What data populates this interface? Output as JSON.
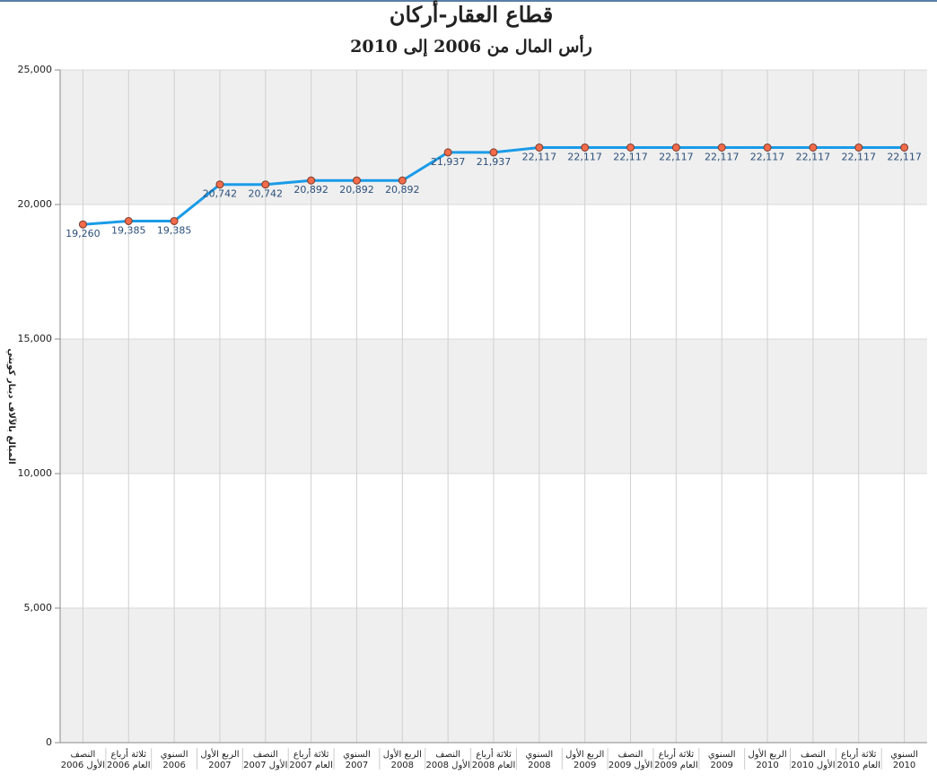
{
  "chart_data": {
    "type": "line",
    "title": "قطاع العقار-أركان",
    "subtitle": "رأس المال من 2006 إلى 2010",
    "y_label": "المبالغ بالآلاف دينار كويتي",
    "categories": [
      [
        "النصف",
        "الأول 2006"
      ],
      [
        "ثلاثة أرباع",
        "العام 2006"
      ],
      [
        "السنوي",
        "2006"
      ],
      [
        "الربع الأول",
        "2007"
      ],
      [
        "النصف",
        "الأول 2007"
      ],
      [
        "ثلاثة أرباع",
        "العام 2007"
      ],
      [
        "السنوي",
        "2007"
      ],
      [
        "الربع الأول",
        "2008"
      ],
      [
        "النصف",
        "الأول 2008"
      ],
      [
        "ثلاثة أرباع",
        "العام 2008"
      ],
      [
        "السنوي",
        "2008"
      ],
      [
        "الربع الأول",
        "2009"
      ],
      [
        "النصف",
        "الأول 2009"
      ],
      [
        "ثلاثة أرباع",
        "العام 2009"
      ],
      [
        "السنوي",
        "2009"
      ],
      [
        "الربع الأول",
        "2010"
      ],
      [
        "النصف",
        "الأول 2010"
      ],
      [
        "ثلاثة أرباع",
        "العام 2010"
      ],
      [
        "السنوي",
        "2010"
      ]
    ],
    "values": [
      19260,
      19385,
      19385,
      20742,
      20742,
      20892,
      20892,
      20892,
      21937,
      21937,
      22117,
      22117,
      22117,
      22117,
      22117,
      22117,
      22117,
      22117,
      22117
    ],
    "value_labels": [
      "19,260",
      "19,385",
      "19,385",
      "20,742",
      "20,742",
      "20,892",
      "20,892",
      "20,892",
      "21,937",
      "21,937",
      "22,117",
      "22,117",
      "22,117",
      "22,117",
      "22,117",
      "22,117",
      "22,117",
      "22,117",
      "22,117"
    ],
    "color": "#1a9be8",
    "marker_color": "#f26b4a",
    "ylim": [
      0,
      25000
    ],
    "yticks": [
      0,
      {
        "value": 5000,
        "label": "5,000"
      },
      {
        "value": 10000,
        "label": "10,000"
      },
      {
        "value": 15000,
        "label": "15,000"
      },
      {
        "value": 20000,
        "label": "20,000"
      },
      {
        "value": 25000,
        "label": "25,000"
      }
    ],
    "grid": true
  }
}
